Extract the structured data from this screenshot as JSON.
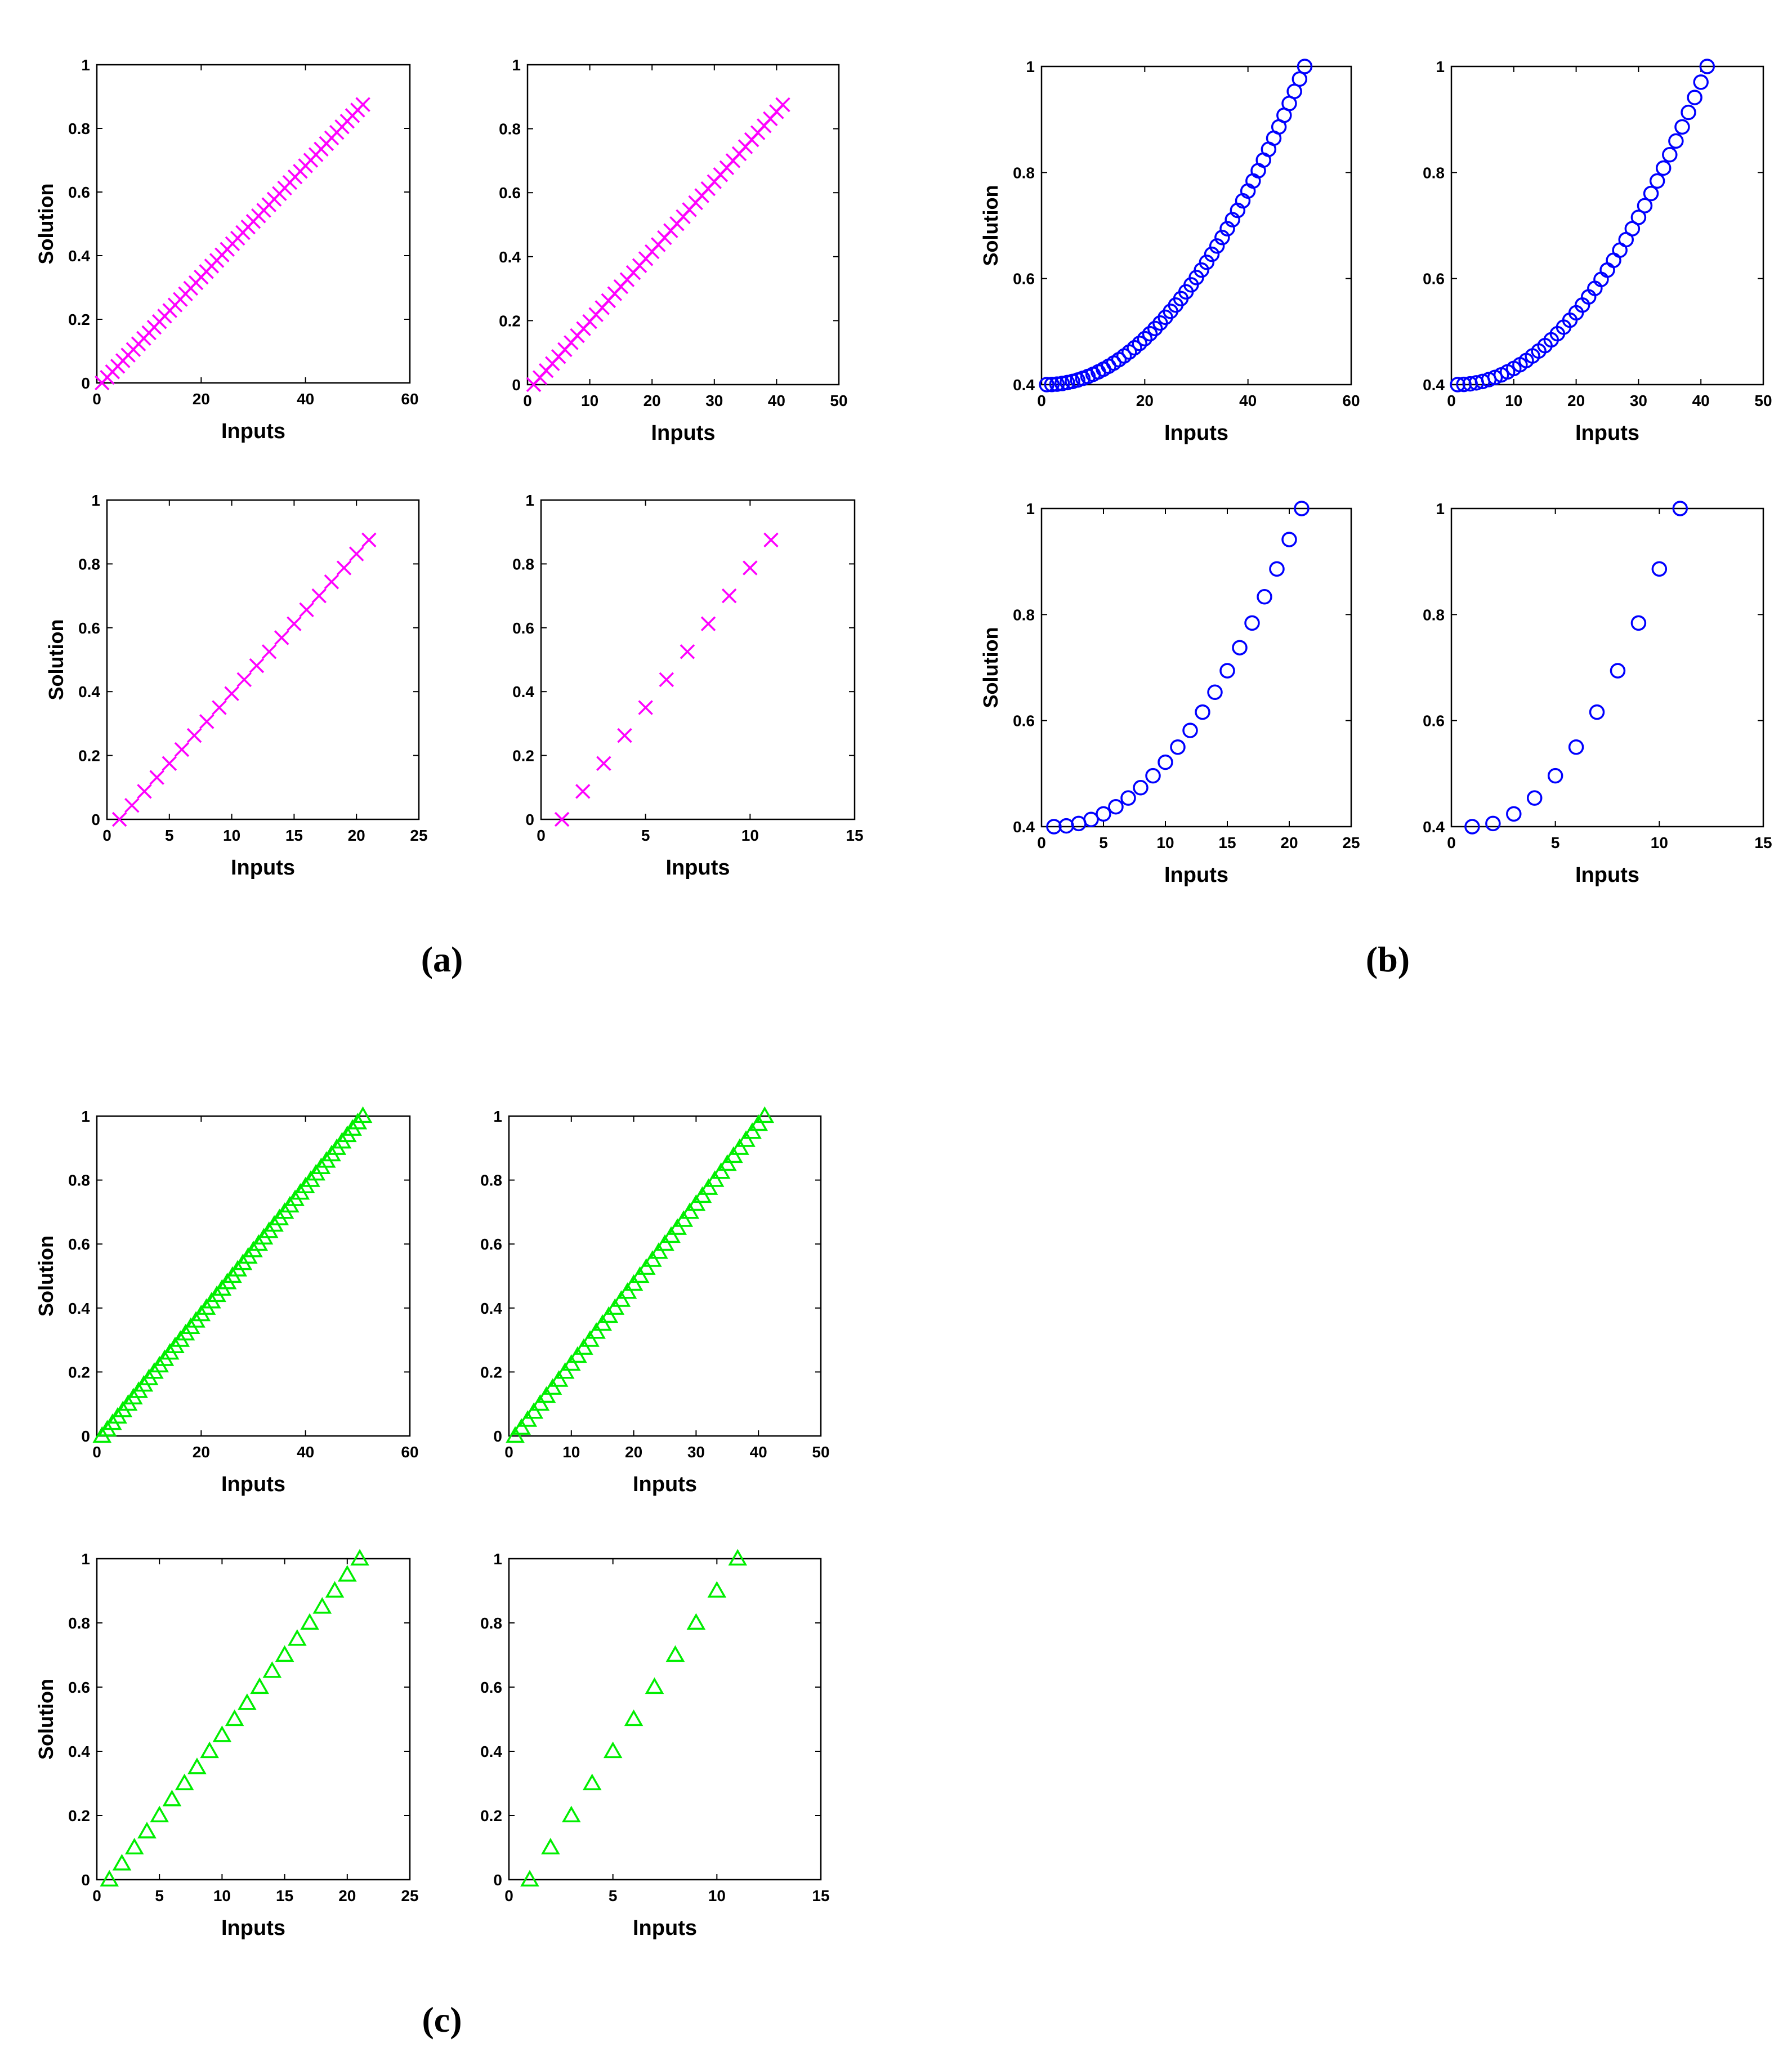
{
  "figure": {
    "panel_labels": [
      "(a)",
      "(b)",
      "(c)"
    ]
  },
  "chart_data": [
    {
      "id": "a1",
      "group": "a",
      "type": "scatter",
      "marker": "x",
      "color": "#ff00ff",
      "title": "",
      "xlabel": "Inputs",
      "ylabel": "Solution",
      "xlim": [
        0,
        60
      ],
      "ylim": [
        0,
        1
      ],
      "xticks": [
        "0",
        "20",
        "40",
        "60"
      ],
      "yticks": [
        "0",
        "0.2",
        "0.4",
        "0.6",
        "0.8",
        "1"
      ],
      "n_points": 51,
      "x_start": 1,
      "y_start": 0,
      "y_end": 0.875,
      "curve": "linear"
    },
    {
      "id": "a2",
      "group": "a",
      "type": "scatter",
      "marker": "x",
      "color": "#ff00ff",
      "title": "",
      "xlabel": "Inputs",
      "ylabel": "",
      "xlim": [
        0,
        50
      ],
      "ylim": [
        0,
        1
      ],
      "xticks": [
        "0",
        "10",
        "20",
        "30",
        "40",
        "50"
      ],
      "yticks": [
        "0",
        "0.2",
        "0.4",
        "0.6",
        "0.8",
        "1"
      ],
      "n_points": 41,
      "x_start": 1,
      "y_start": 0,
      "y_end": 0.875,
      "curve": "linear"
    },
    {
      "id": "a3",
      "group": "a",
      "type": "scatter",
      "marker": "x",
      "color": "#ff00ff",
      "title": "",
      "xlabel": "Inputs",
      "ylabel": "Solution",
      "xlim": [
        0,
        25
      ],
      "ylim": [
        0,
        1
      ],
      "xticks": [
        "0",
        "5",
        "10",
        "15",
        "20",
        "25"
      ],
      "yticks": [
        "0",
        "0.2",
        "0.4",
        "0.6",
        "0.8",
        "1"
      ],
      "n_points": 21,
      "x_start": 1,
      "y_start": 0,
      "y_end": 0.875,
      "curve": "linear"
    },
    {
      "id": "a4",
      "group": "a",
      "type": "scatter",
      "marker": "x",
      "color": "#ff00ff",
      "title": "",
      "xlabel": "Inputs",
      "ylabel": "",
      "xlim": [
        0,
        15
      ],
      "ylim": [
        0,
        1
      ],
      "xticks": [
        "0",
        "5",
        "10",
        "15"
      ],
      "yticks": [
        "0",
        "0.2",
        "0.4",
        "0.6",
        "0.8",
        "1"
      ],
      "n_points": 11,
      "x_start": 1,
      "y_start": 0,
      "y_end": 0.875,
      "curve": "linear"
    },
    {
      "id": "b1",
      "group": "b",
      "type": "scatter",
      "marker": "circle",
      "color": "#0000ff",
      "title": "",
      "xlabel": "Inputs",
      "ylabel": "Solution",
      "xlim": [
        0,
        60
      ],
      "ylim": [
        0.4,
        1
      ],
      "xticks": [
        "0",
        "20",
        "40",
        "60"
      ],
      "yticks": [
        "0.4",
        "0.6",
        "0.8",
        "1"
      ],
      "n_points": 51,
      "x_start": 1,
      "y_start": 0.4,
      "y_end": 1,
      "curve": "quadratic"
    },
    {
      "id": "b2",
      "group": "b",
      "type": "scatter",
      "marker": "circle",
      "color": "#0000ff",
      "title": "",
      "xlabel": "Inputs",
      "ylabel": "",
      "xlim": [
        0,
        50
      ],
      "ylim": [
        0.4,
        1
      ],
      "xticks": [
        "0",
        "10",
        "20",
        "30",
        "40",
        "50"
      ],
      "yticks": [
        "0.4",
        "0.6",
        "0.8",
        "1"
      ],
      "n_points": 41,
      "x_start": 1,
      "y_start": 0.4,
      "y_end": 1,
      "curve": "quadratic"
    },
    {
      "id": "b3",
      "group": "b",
      "type": "scatter",
      "marker": "circle",
      "color": "#0000ff",
      "title": "",
      "xlabel": "Inputs",
      "ylabel": "Solution",
      "xlim": [
        0,
        25
      ],
      "ylim": [
        0.4,
        1
      ],
      "xticks": [
        "0",
        "5",
        "10",
        "15",
        "20",
        "25"
      ],
      "yticks": [
        "0.4",
        "0.6",
        "0.8",
        "1"
      ],
      "n_points": 21,
      "x_start": 1,
      "y_start": 0.4,
      "y_end": 1,
      "curve": "quadratic"
    },
    {
      "id": "b4",
      "group": "b",
      "type": "scatter",
      "marker": "circle",
      "color": "#0000ff",
      "title": "",
      "xlabel": "Inputs",
      "ylabel": "",
      "xlim": [
        0,
        15
      ],
      "ylim": [
        0.4,
        1
      ],
      "xticks": [
        "0",
        "5",
        "10",
        "15"
      ],
      "yticks": [
        "0.4",
        "0.6",
        "0.8",
        "1"
      ],
      "n_points": 11,
      "x_start": 1,
      "y_start": 0.4,
      "y_end": 1,
      "curve": "quadratic"
    },
    {
      "id": "c1",
      "group": "c",
      "type": "scatter",
      "marker": "triangle",
      "color": "#00ee00",
      "title": "",
      "xlabel": "Inputs",
      "ylabel": "Solution",
      "xlim": [
        0,
        60
      ],
      "ylim": [
        0,
        1
      ],
      "xticks": [
        "0",
        "20",
        "40",
        "60"
      ],
      "yticks": [
        "0",
        "0.2",
        "0.4",
        "0.6",
        "0.8",
        "1"
      ],
      "n_points": 51,
      "x_start": 1,
      "y_start": 0,
      "y_end": 1,
      "curve": "linear"
    },
    {
      "id": "c2",
      "group": "c",
      "type": "scatter",
      "marker": "triangle",
      "color": "#00ee00",
      "title": "",
      "xlabel": "Inputs",
      "ylabel": "",
      "xlim": [
        0,
        50
      ],
      "ylim": [
        0,
        1
      ],
      "xticks": [
        "0",
        "10",
        "20",
        "30",
        "40",
        "50"
      ],
      "yticks": [
        "0",
        "0.2",
        "0.4",
        "0.6",
        "0.8",
        "1"
      ],
      "n_points": 41,
      "x_start": 1,
      "y_start": 0,
      "y_end": 1,
      "curve": "linear"
    },
    {
      "id": "c3",
      "group": "c",
      "type": "scatter",
      "marker": "triangle",
      "color": "#00ee00",
      "title": "",
      "xlabel": "Inputs",
      "ylabel": "Solution",
      "xlim": [
        0,
        25
      ],
      "ylim": [
        0,
        1
      ],
      "xticks": [
        "0",
        "5",
        "10",
        "15",
        "20",
        "25"
      ],
      "yticks": [
        "0",
        "0.2",
        "0.4",
        "0.6",
        "0.8",
        "1"
      ],
      "n_points": 21,
      "x_start": 1,
      "y_start": 0,
      "y_end": 1,
      "curve": "linear"
    },
    {
      "id": "c4",
      "group": "c",
      "type": "scatter",
      "marker": "triangle",
      "color": "#00ee00",
      "title": "",
      "xlabel": "Inputs",
      "ylabel": "",
      "xlim": [
        0,
        15
      ],
      "ylim": [
        0,
        1
      ],
      "xticks": [
        "0",
        "5",
        "10",
        "15"
      ],
      "yticks": [
        "0",
        "0.2",
        "0.4",
        "0.6",
        "0.8",
        "1"
      ],
      "n_points": 11,
      "x_start": 1,
      "y_start": 0,
      "y_end": 1,
      "curve": "linear"
    }
  ]
}
